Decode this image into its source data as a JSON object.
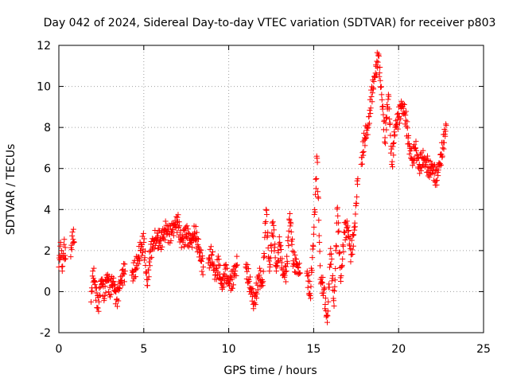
{
  "chart_data": {
    "type": "scatter",
    "title": "Day 042 of 2024, Sidereal Day-to-day VTEC variation (SDTVAR) for receiver p803",
    "xlabel": "GPS time / hours",
    "ylabel": "SDTVAR / TECUs",
    "xlim": [
      0,
      25
    ],
    "ylim": [
      -2,
      12
    ],
    "x_ticks": [
      0,
      5,
      10,
      15,
      20,
      25
    ],
    "y_ticks": [
      -2,
      0,
      2,
      4,
      6,
      8,
      10,
      12
    ],
    "grid": true,
    "marker": "+",
    "series": [
      {
        "name": "SDTVAR",
        "color": "#ff0000",
        "segments": [
          {
            "x": [
              0.0,
              0.1,
              0.2,
              0.3,
              0.4
            ],
            "y": [
              1.2,
              2.4,
              1.0,
              2.3,
              1.6
            ]
          },
          {
            "x": [
              0.7,
              0.8,
              0.9
            ],
            "y": [
              1.7,
              2.9,
              2.4
            ]
          },
          {
            "x": [
              1.9,
              2.0,
              2.1,
              2.3,
              2.5,
              2.7,
              2.8,
              3.0,
              3.2,
              3.4,
              3.6,
              3.8,
              3.9
            ],
            "y": [
              -0.5,
              1.0,
              0.5,
              -0.8,
              0.6,
              -0.2,
              0.8,
              0.2,
              0.5,
              -0.4,
              0.4,
              0.9,
              1.0
            ]
          },
          {
            "x": [
              4.3,
              4.5,
              4.8,
              5.0,
              5.2,
              5.4,
              5.7,
              6.0,
              6.3,
              6.5,
              6.8,
              7.0,
              7.2,
              7.5,
              7.8,
              8.0,
              8.2,
              8.5
            ],
            "y": [
              0.8,
              1.1,
              2.0,
              2.4,
              0.3,
              2.0,
              2.6,
              2.5,
              3.0,
              2.8,
              3.2,
              3.4,
              2.5,
              2.8,
              2.4,
              2.9,
              2.2,
              1.2
            ]
          },
          {
            "x": [
              8.8,
              9.0,
              9.2,
              9.4,
              9.6,
              9.8,
              10.0,
              10.2,
              10.5
            ],
            "y": [
              1.4,
              1.8,
              0.8,
              1.3,
              0.2,
              1.1,
              0.4,
              0.6,
              1.3
            ]
          },
          {
            "x": [
              11.0,
              11.2,
              11.5,
              11.8,
              12.0,
              12.2,
              12.4,
              12.6,
              12.8,
              13.0,
              13.2,
              13.4,
              13.6,
              13.8,
              14.0,
              14.2
            ],
            "y": [
              1.2,
              0.5,
              -0.6,
              0.8,
              0.3,
              4.0,
              1.0,
              3.4,
              1.0,
              2.4,
              0.8,
              1.0,
              3.8,
              1.5,
              1.3,
              0.9
            ]
          },
          {
            "x": [
              14.6,
              14.8,
              15.0,
              15.2,
              15.4,
              15.6,
              15.8,
              16.0,
              16.2,
              16.4,
              16.6,
              16.8,
              17.0,
              17.2,
              17.4,
              17.6
            ],
            "y": [
              0.9,
              -0.2,
              2.8,
              6.5,
              0.6,
              0.1,
              -1.5,
              2.1,
              -0.7,
              4.1,
              0.5,
              2.9,
              3.2,
              1.8,
              3.0,
              5.5
            ]
          },
          {
            "x": [
              17.8,
              18.0,
              18.2,
              18.4,
              18.6,
              18.8,
              19.0,
              19.2,
              19.4,
              19.6,
              19.8,
              20.0,
              20.2,
              20.4,
              20.6,
              20.8,
              21.0,
              21.2,
              21.4,
              21.6,
              21.8,
              22.0,
              22.2,
              22.4,
              22.6,
              22.8
            ],
            "y": [
              6.2,
              7.5,
              8.0,
              9.5,
              10.5,
              11.5,
              9.6,
              7.5,
              9.6,
              6.2,
              8.0,
              8.5,
              9.1,
              8.6,
              7.2,
              6.4,
              7.0,
              6.0,
              6.5,
              6.3,
              5.9,
              6.1,
              5.4,
              6.2,
              7.0,
              8.1
            ]
          }
        ]
      }
    ]
  }
}
